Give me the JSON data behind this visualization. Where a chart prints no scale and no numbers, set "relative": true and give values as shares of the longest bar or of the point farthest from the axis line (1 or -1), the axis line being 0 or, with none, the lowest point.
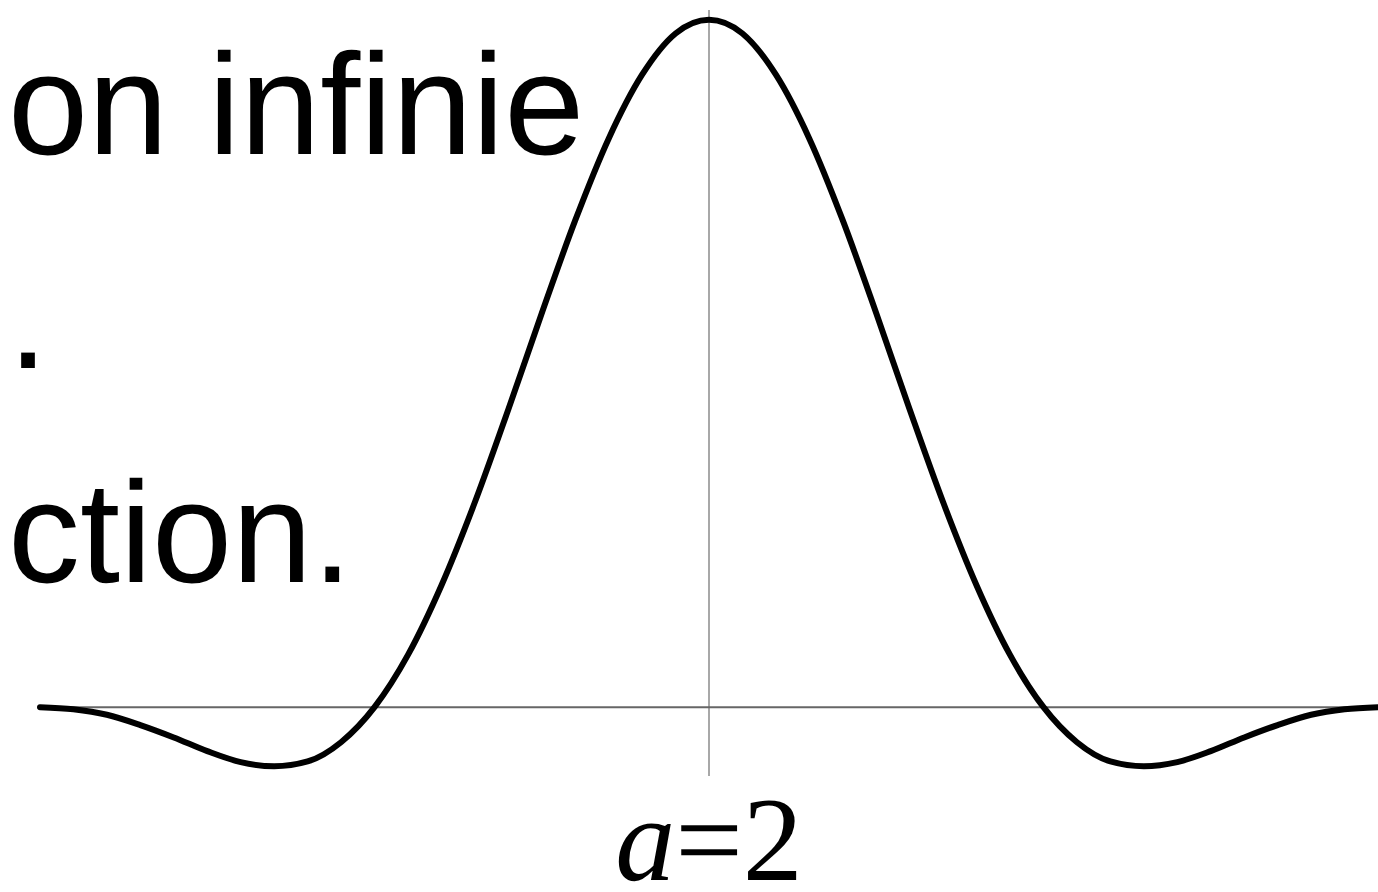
{
  "chart_data": {
    "type": "line",
    "relative": true,
    "xlabel": "a=2",
    "annotations": [
      "on infinie",
      ".",
      "ction."
    ],
    "categories": [
      null,
      null,
      null,
      null,
      null,
      null,
      null,
      null,
      null,
      null,
      null,
      null,
      null,
      null,
      null,
      null,
      null,
      null,
      null,
      null,
      null,
      null,
      null,
      null,
      null,
      null,
      null,
      null,
      null,
      null,
      null,
      null,
      null,
      null,
      null,
      null,
      null,
      null,
      null,
      null,
      null
    ],
    "color": "#000000",
    "values": [
      0,
      -0.003,
      -0.011,
      -0.026,
      -0.044,
      -0.064,
      -0.08,
      -0.086,
      -0.079,
      -0.051,
      0,
      0.076,
      0.177,
      0.298,
      0.433,
      0.573,
      0.708,
      0.827,
      0.92,
      0.98,
      1,
      0.98,
      0.92,
      0.827,
      0.708,
      0.573,
      0.433,
      0.298,
      0.177,
      0.076,
      0,
      -0.051,
      -0.079,
      -0.086,
      -0.08,
      -0.064,
      -0.044,
      -0.026,
      -0.011,
      -0.003,
      0
    ]
  }
}
